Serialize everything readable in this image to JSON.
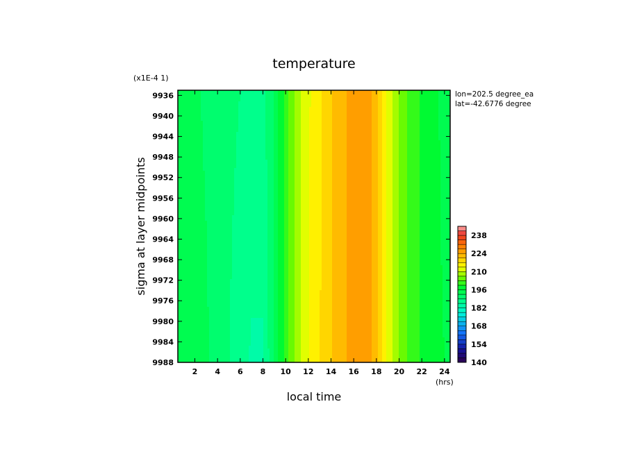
{
  "chart_data": {
    "type": "heatmap",
    "title": "temperature",
    "xlabel": "local time",
    "ylabel": "sigma at layer midpoints",
    "x_unit": "(hrs)",
    "y_scale_note": "(x1E-4 1)",
    "info": [
      "lon=202.5 degree_ea",
      "lat=-42.6776 degree"
    ],
    "xlim": [
      0.5,
      24.5
    ],
    "ylim": [
      9988,
      9935
    ],
    "x_ticks": [
      2,
      4,
      6,
      8,
      10,
      12,
      14,
      16,
      18,
      20,
      22,
      24
    ],
    "x_tick_labels": [
      "2",
      "4",
      "6",
      "8",
      "10",
      "12",
      "14",
      "16",
      "18",
      "20",
      "22",
      "24"
    ],
    "y_ticks": [
      9936,
      9940,
      9944,
      9948,
      9952,
      9956,
      9960,
      9964,
      9968,
      9972,
      9976,
      9980,
      9984,
      9988
    ],
    "y_tick_labels": [
      "9936",
      "9940",
      "9944",
      "9948",
      "9952",
      "9956",
      "9960",
      "9964",
      "9968",
      "9972",
      "9976",
      "9980",
      "9984",
      "9988"
    ],
    "colorbar": {
      "min": 140,
      "max": 245,
      "step": 3.5,
      "labels": [
        "140",
        "154",
        "168",
        "182",
        "196",
        "210",
        "224",
        "238"
      ],
      "label_values": [
        140,
        154,
        168,
        182,
        196,
        210,
        224,
        238
      ]
    },
    "hours": [
      0.5,
      1,
      2,
      3,
      4,
      5,
      6,
      7,
      8,
      9,
      10,
      11,
      12,
      13,
      14,
      15,
      16,
      17,
      18,
      19,
      20,
      21,
      22,
      23,
      24,
      24.5
    ],
    "sigma_levels": [
      9935,
      9988
    ],
    "values": [
      [
        194,
        194,
        193,
        192,
        191,
        190,
        189,
        188,
        188,
        193,
        201,
        208,
        213,
        216,
        220,
        223,
        226,
        226,
        222,
        212,
        206,
        202,
        199,
        197,
        195,
        195
      ],
      [
        196,
        195,
        194,
        193,
        191,
        189,
        187,
        185,
        185,
        193,
        201,
        208,
        213,
        217,
        220,
        223,
        226,
        226,
        222,
        212,
        206,
        202,
        199,
        197,
        196,
        196
      ]
    ]
  }
}
